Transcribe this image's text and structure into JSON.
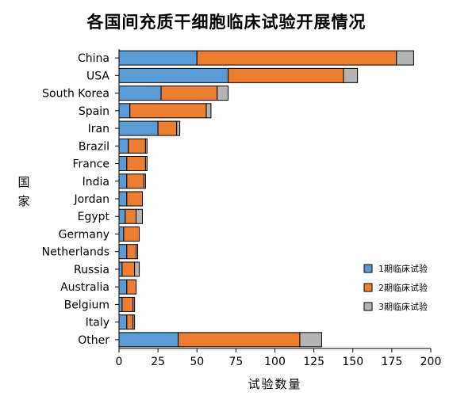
{
  "chart_data": {
    "type": "bar",
    "orientation": "horizontal",
    "stacked": true,
    "title": "各国间充质干细胞临床试验开展情况",
    "xlabel": "试验数量",
    "ylabel": "国家",
    "xlim": [
      0,
      200
    ],
    "xticks": [
      "0",
      "25",
      "50",
      "75",
      "100",
      "125",
      "150",
      "175",
      "200"
    ],
    "grid": false,
    "legend_position": "lower-right",
    "categories": [
      "China",
      "USA",
      "South Korea",
      "Spain",
      "Iran",
      "Brazil",
      "France",
      "India",
      "Jordan",
      "Egypt",
      "Germany",
      "Netherlands",
      "Russia",
      "Australia",
      "Belgium",
      "Italy",
      "Other"
    ],
    "series": [
      {
        "name": "1期临床试验",
        "color": "#5b9bd5",
        "values": [
          50,
          70,
          27,
          7,
          25,
          6,
          5,
          5,
          5,
          4,
          3,
          5,
          2,
          5,
          2,
          5,
          38
        ]
      },
      {
        "name": "2期临床试验",
        "color": "#ed7d31",
        "values": [
          128,
          74,
          36,
          49,
          12,
          11,
          12,
          11,
          10,
          7,
          10,
          6,
          8,
          6,
          7,
          4,
          78
        ]
      },
      {
        "name": "3期临床试验",
        "color": "#b4b4b4",
        "values": [
          11,
          9,
          7,
          3,
          2,
          1,
          1,
          1,
          0,
          4,
          0,
          1,
          3,
          0,
          1,
          1,
          14
        ]
      }
    ]
  }
}
